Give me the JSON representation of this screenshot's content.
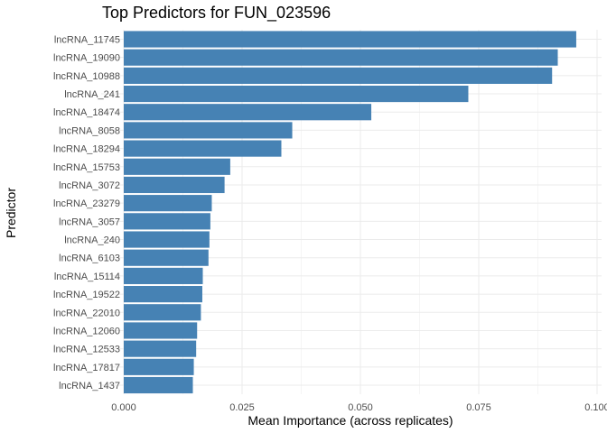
{
  "chart_data": {
    "type": "bar",
    "orientation": "horizontal",
    "title": "Top Predictors for FUN_023596",
    "xlabel": "Mean Importance (across replicates)",
    "ylabel": "Predictor",
    "xlim": [
      0,
      0.1
    ],
    "x_ticks": [
      0.0,
      0.025,
      0.05,
      0.075,
      0.1
    ],
    "x_tick_labels": [
      "0.000",
      "0.025",
      "0.050",
      "0.075",
      "0.100"
    ],
    "grid": true,
    "bar_color": "#4682b4",
    "categories": [
      "lncRNA_11745",
      "lncRNA_19090",
      "lncRNA_10988",
      "lncRNA_241",
      "lncRNA_18474",
      "lncRNA_8058",
      "lncRNA_18294",
      "lncRNA_15753",
      "lncRNA_3072",
      "lncRNA_23279",
      "lncRNA_3057",
      "lncRNA_240",
      "lncRNA_6103",
      "lncRNA_15114",
      "lncRNA_19522",
      "lncRNA_22010",
      "lncRNA_12060",
      "lncRNA_12533",
      "lncRNA_17817",
      "lncRNA_1437"
    ],
    "values": [
      0.0956,
      0.0917,
      0.0905,
      0.0728,
      0.0523,
      0.0356,
      0.0333,
      0.0225,
      0.0213,
      0.0186,
      0.0183,
      0.0181,
      0.0179,
      0.0167,
      0.0166,
      0.0163,
      0.0155,
      0.0153,
      0.0148,
      0.0146
    ]
  }
}
